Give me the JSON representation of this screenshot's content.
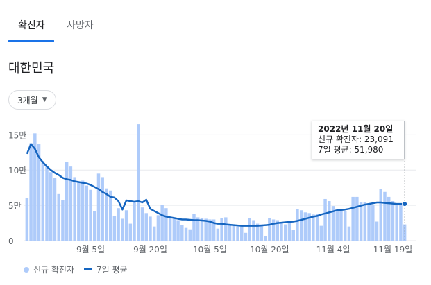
{
  "tabs": {
    "confirmed": "확진자",
    "deaths": "사망자"
  },
  "region": "대한민국",
  "range": {
    "label": "3개월"
  },
  "tooltip": {
    "date": "2022년 11월 20일",
    "new_cases": "신규 확진자: 23,091",
    "avg": "7일 평균: 51,980"
  },
  "legend": {
    "bars": "신규 확진자",
    "line": "7일 평균"
  },
  "colors": {
    "bar": "#aecbfa",
    "line": "#1565c0",
    "accent": "#1a73e8"
  },
  "chart_data": {
    "type": "bar",
    "y_tick_labels": [
      "0",
      "5만",
      "10만",
      "15만"
    ],
    "y_ticks": [
      0,
      50000,
      100000,
      150000
    ],
    "ylim": [
      0,
      170000
    ],
    "x_tick_labels": [
      {
        "label": "9월 5일",
        "index": 16
      },
      {
        "label": "9월 20일",
        "index": 31
      },
      {
        "label": "10월 5일",
        "index": 46
      },
      {
        "label": "10월 20일",
        "index": 61
      },
      {
        "label": "11월 4일",
        "index": 77
      },
      {
        "label": "11월 19일",
        "index": 92
      }
    ],
    "series": [
      {
        "name": "신규 확진자",
        "type": "bar",
        "values": [
          60000,
          138000,
          152000,
          137000,
          113000,
          105000,
          97000,
          89000,
          66000,
          57000,
          112000,
          105000,
          90000,
          83000,
          85000,
          78000,
          72000,
          42000,
          95000,
          90000,
          74000,
          71000,
          35000,
          46000,
          31000,
          43000,
          24000,
          54000,
          165000,
          47000,
          39000,
          34000,
          20000,
          36000,
          51000,
          46000,
          32000,
          31000,
          29000,
          22000,
          18000,
          16000,
          38000,
          33000,
          32000,
          31000,
          30000,
          30000,
          17000,
          32000,
          33000,
          23000,
          22000,
          20000,
          21000,
          11000,
          32000,
          29000,
          24000,
          23000,
          6000,
          32000,
          30000,
          29000,
          26000,
          23000,
          26000,
          15000,
          45000,
          43000,
          40000,
          39000,
          37000,
          38000,
          21000,
          59000,
          56000,
          49000,
          45000,
          45000,
          42000,
          20000,
          62000,
          62000,
          54000,
          54000,
          53000,
          50000,
          27000,
          73000,
          69000,
          62000,
          56000,
          51000,
          51000,
          23000
        ]
      },
      {
        "name": "7일 평균",
        "type": "line",
        "values": [
          123000,
          137000,
          130000,
          118000,
          111000,
          105000,
          100000,
          96000,
          93000,
          89000,
          87000,
          86000,
          84000,
          83000,
          82000,
          81000,
          79000,
          76000,
          73000,
          69000,
          66000,
          62000,
          61000,
          56000,
          44000,
          57000,
          56000,
          55000,
          56000,
          54000,
          58000,
          45000,
          42000,
          39000,
          36000,
          34000,
          33000,
          32000,
          31000,
          30000,
          30000,
          29500,
          29000,
          29000,
          28500,
          28000,
          27000,
          25000,
          24000,
          24000,
          23000,
          22500,
          22000,
          21500,
          21000,
          21000,
          21000,
          21000,
          21000,
          21500,
          22000,
          22500,
          24000,
          25000,
          25500,
          26000,
          26500,
          27000,
          28000,
          29500,
          31000,
          32500,
          34000,
          35000,
          37000,
          38500,
          40000,
          41500,
          43000,
          43500,
          44000,
          45000,
          46500,
          48000,
          49500,
          51000,
          52000,
          53000,
          54000,
          54000,
          53500,
          53000,
          52500,
          52000,
          52000,
          51980
        ]
      }
    ]
  }
}
